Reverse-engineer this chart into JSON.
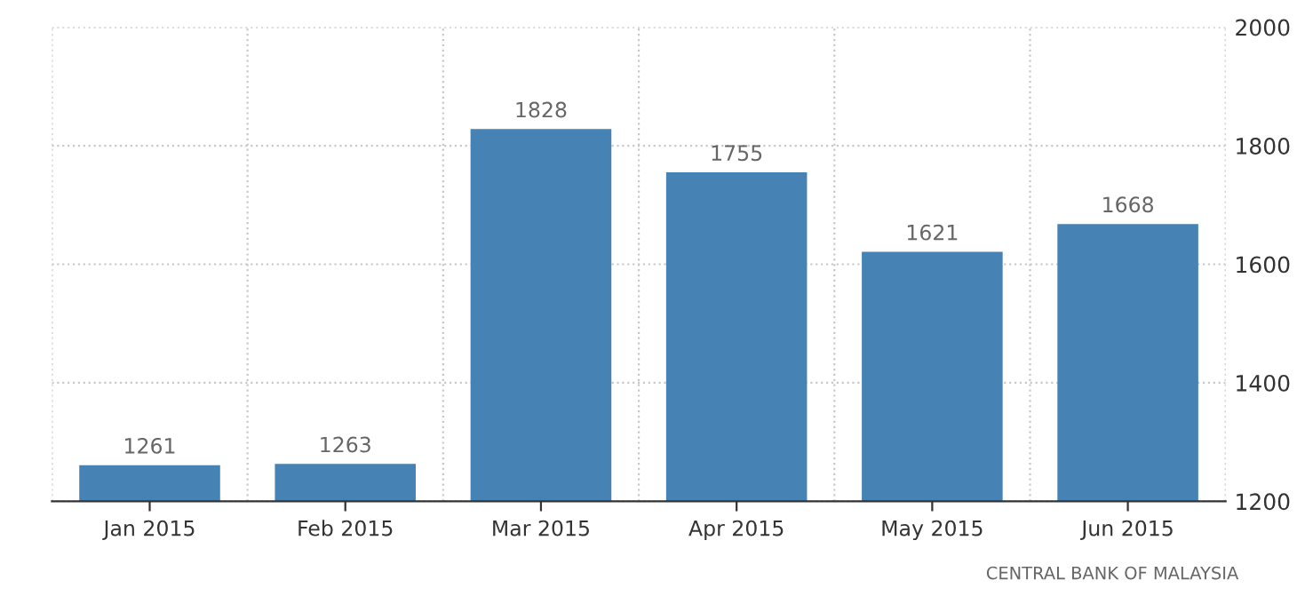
{
  "chart_data": {
    "type": "bar",
    "categories": [
      "Jan 2015",
      "Feb 2015",
      "Mar 2015",
      "Apr 2015",
      "May 2015",
      "Jun 2015"
    ],
    "values": [
      1261,
      1263,
      1828,
      1755,
      1621,
      1668
    ],
    "color": "#4682b4",
    "ylim": [
      1200,
      2000
    ],
    "yticks": [
      1200,
      1400,
      1600,
      1800,
      2000
    ],
    "grid": true,
    "data_labels": true,
    "annotations": [
      "CENTRAL BANK OF MALAYSIA"
    ]
  }
}
